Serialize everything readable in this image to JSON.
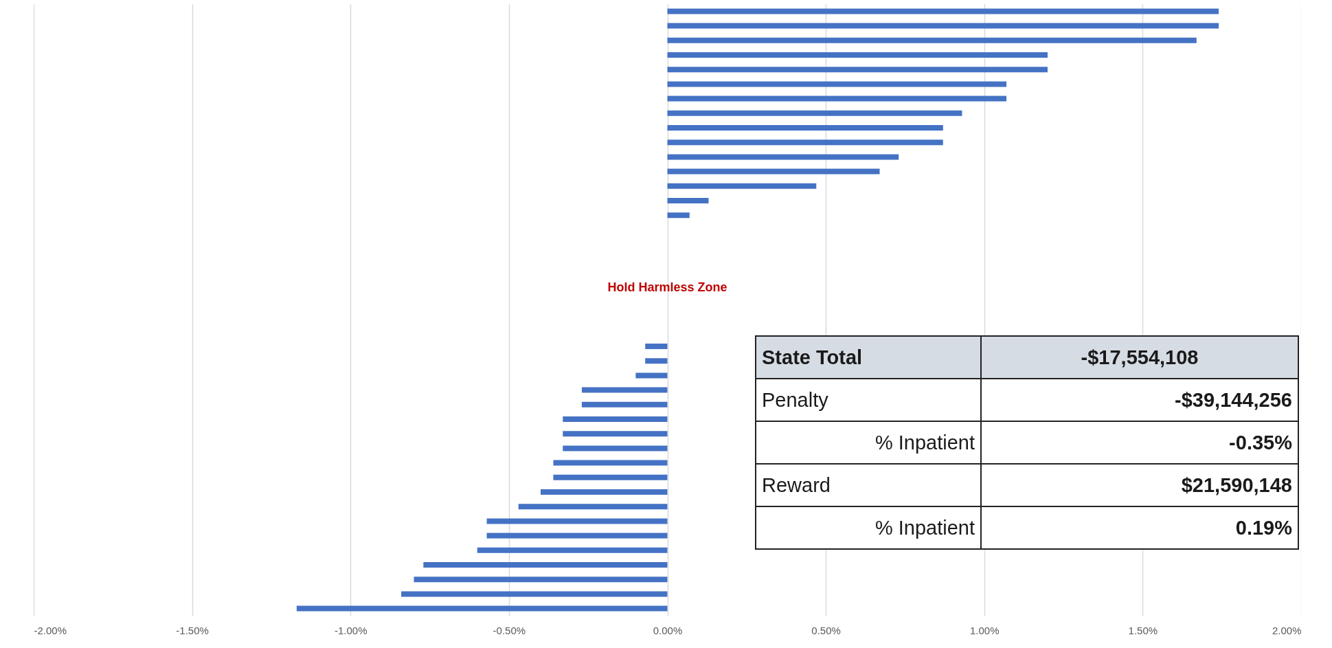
{
  "chart_data": {
    "type": "bar",
    "orientation": "horizontal",
    "color": "#4472c4",
    "categories": [
      null,
      null,
      null,
      null,
      null,
      null,
      null,
      null,
      null,
      null,
      null,
      null,
      null,
      null,
      null,
      null,
      null,
      null,
      null,
      null,
      null,
      null,
      null,
      null,
      null,
      null,
      null,
      null,
      null,
      null,
      null,
      null,
      null,
      null,
      null,
      null,
      null,
      null,
      null,
      null,
      null,
      null
    ],
    "values": [
      1.74,
      1.74,
      1.67,
      1.2,
      1.2,
      1.07,
      1.07,
      0.93,
      0.87,
      0.87,
      0.73,
      0.67,
      0.47,
      0.13,
      0.07,
      null,
      null,
      null,
      null,
      null,
      null,
      null,
      null,
      -0.07,
      -0.07,
      -0.1,
      -0.27,
      -0.27,
      -0.33,
      -0.33,
      -0.33,
      -0.36,
      -0.36,
      -0.4,
      -0.47,
      -0.57,
      -0.57,
      -0.6,
      -0.77,
      -0.8,
      -0.84,
      -1.17
    ],
    "xlim": [
      -2,
      2
    ],
    "xticks": [
      {
        "value": -2,
        "label": "-2.00%"
      },
      {
        "value": -1.5,
        "label": "-1.50%"
      },
      {
        "value": -1,
        "label": "-1.00%"
      },
      {
        "value": -0.5,
        "label": "-0.50%"
      },
      {
        "value": 0,
        "label": "0.00%"
      },
      {
        "value": 0.5,
        "label": "0.50%"
      },
      {
        "value": 1,
        "label": "1.00%"
      },
      {
        "value": 1.5,
        "label": "1.50%"
      },
      {
        "value": 2,
        "label": "2.00%"
      }
    ],
    "grid": "x",
    "tick_labels": "x",
    "annotations": [
      "Hold Harmless Zone",
      "State Total",
      "-$17,554,108",
      "Penalty",
      "-$39,144,256",
      "% Inpatient",
      "-0.35%",
      "Reward",
      "$21,590,148",
      "% Inpatient",
      "0.19%"
    ]
  }
}
